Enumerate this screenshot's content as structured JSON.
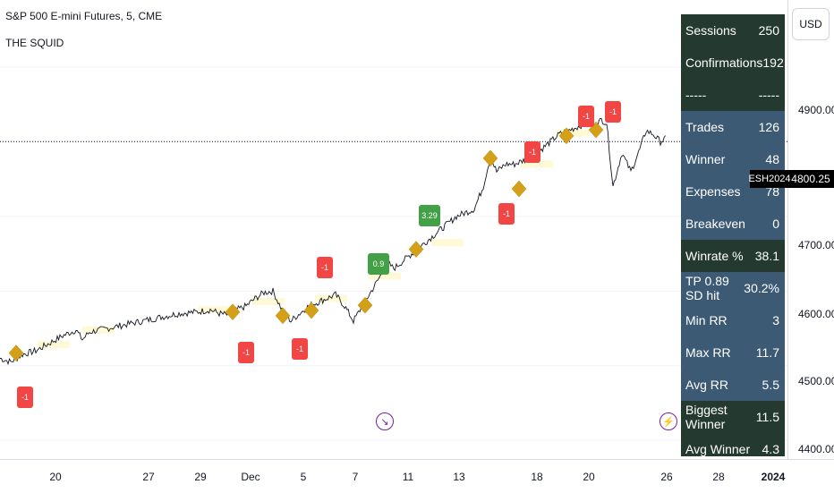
{
  "header": {
    "title": "S&P 500 E-mini Futures, 5, CME",
    "indicator": "THE SQUID"
  },
  "axis": {
    "currency": "USD",
    "y_labels": [
      "4900.00",
      "4800.00",
      "4700.00",
      "4600.00",
      "4500.00",
      "4400.00"
    ],
    "last_price": "4800.25",
    "symbol": "ESH2024"
  },
  "x_labels": [
    "20",
    "27",
    "29",
    "Dec",
    "5",
    "7",
    "11",
    "13",
    "18",
    "20",
    "26",
    "28",
    "2024"
  ],
  "stats": [
    {
      "label": "Sessions",
      "value": "250",
      "bg": "#243a30"
    },
    {
      "label": "Confirmations",
      "value": "192",
      "bg": "#243a30"
    },
    {
      "label": "-----",
      "value": "-----",
      "bg": "#243a30"
    },
    {
      "label": "Trades",
      "value": "126",
      "bg": "#3d5a75"
    },
    {
      "label": "Winner",
      "value": "48",
      "bg": "#3d5a75"
    },
    {
      "label": "Expenses",
      "value": "78",
      "bg": "#3d5a75"
    },
    {
      "label": "Breakeven",
      "value": "0",
      "bg": "#3d5a75"
    },
    {
      "label": "Winrate %",
      "value": "38.1",
      "bg": "#243a30"
    },
    {
      "label": "TP 0.89 SD hit",
      "value": "30.2%",
      "bg": "#3d5a75"
    },
    {
      "label": "Min RR",
      "value": "3",
      "bg": "#3d5a75"
    },
    {
      "label": "Max RR",
      "value": "11.7",
      "bg": "#3d5a75"
    },
    {
      "label": "Avg RR",
      "value": "5.5",
      "bg": "#3d5a75"
    },
    {
      "label": "Biggest Winner",
      "value": "11.5",
      "bg": "#243a30"
    },
    {
      "label": "Avg Winner",
      "value": "4.3",
      "bg": "#243a30"
    }
  ],
  "chart_data": {
    "type": "line",
    "ylim": [
      4375,
      4990
    ],
    "x_range": [
      0,
      760
    ],
    "series": [
      {
        "values": [
          [
            0,
            4510
          ],
          [
            12,
            4505
          ],
          [
            25,
            4515
          ],
          [
            40,
            4520
          ],
          [
            55,
            4530
          ],
          [
            70,
            4540
          ],
          [
            85,
            4548
          ],
          [
            92,
            4535
          ],
          [
            100,
            4545
          ],
          [
            120,
            4550
          ],
          [
            140,
            4555
          ],
          [
            160,
            4560
          ],
          [
            180,
            4565
          ],
          [
            200,
            4570
          ],
          [
            220,
            4572
          ],
          [
            235,
            4575
          ],
          [
            245,
            4570
          ],
          [
            255,
            4568
          ],
          [
            265,
            4575
          ],
          [
            275,
            4580
          ],
          [
            285,
            4590
          ],
          [
            295,
            4598
          ],
          [
            305,
            4600
          ],
          [
            315,
            4575
          ],
          [
            325,
            4560
          ],
          [
            335,
            4570
          ],
          [
            345,
            4580
          ],
          [
            355,
            4585
          ],
          [
            365,
            4590
          ],
          [
            375,
            4595
          ],
          [
            385,
            4580
          ],
          [
            395,
            4560
          ],
          [
            405,
            4580
          ],
          [
            415,
            4600
          ],
          [
            425,
            4620
          ],
          [
            432,
            4640
          ],
          [
            440,
            4630
          ],
          [
            450,
            4640
          ],
          [
            460,
            4650
          ],
          [
            470,
            4660
          ],
          [
            480,
            4670
          ],
          [
            490,
            4680
          ],
          [
            500,
            4690
          ],
          [
            510,
            4700
          ],
          [
            520,
            4705
          ],
          [
            530,
            4710
          ],
          [
            540,
            4740
          ],
          [
            548,
            4780
          ],
          [
            555,
            4760
          ],
          [
            565,
            4770
          ],
          [
            575,
            4770
          ],
          [
            585,
            4775
          ],
          [
            595,
            4780
          ],
          [
            605,
            4790
          ],
          [
            615,
            4800
          ],
          [
            625,
            4810
          ],
          [
            635,
            4815
          ],
          [
            645,
            4820
          ],
          [
            655,
            4825
          ],
          [
            665,
            4820
          ],
          [
            672,
            4830
          ],
          [
            678,
            4825
          ],
          [
            685,
            4740
          ],
          [
            695,
            4785
          ],
          [
            705,
            4760
          ],
          [
            715,
            4790
          ],
          [
            722,
            4815
          ],
          [
            730,
            4810
          ],
          [
            738,
            4800
          ],
          [
            745,
            4805
          ]
        ]
      }
    ],
    "diamonds": [
      [
        18,
        4517
      ],
      [
        260,
        4572
      ],
      [
        316,
        4567
      ],
      [
        348,
        4574
      ],
      [
        408,
        4581
      ],
      [
        465,
        4656
      ],
      [
        548,
        4778
      ],
      [
        580,
        4737
      ],
      [
        633,
        4808
      ],
      [
        666,
        4816
      ]
    ],
    "trade_labels": [
      {
        "text": "-1",
        "x": 28,
        "y": 4458,
        "kind": "loss"
      },
      {
        "text": "-1",
        "x": 275,
        "y": 4518,
        "kind": "loss"
      },
      {
        "text": "-1",
        "x": 335,
        "y": 4522,
        "kind": "loss"
      },
      {
        "text": "-1",
        "x": 363,
        "y": 4631,
        "kind": "loss"
      },
      {
        "text": "0.9",
        "x": 423,
        "y": 4636,
        "kind": "win"
      },
      {
        "text": "3.29",
        "x": 480,
        "y": 4701,
        "kind": "win"
      },
      {
        "text": "-1",
        "x": 566,
        "y": 4703,
        "kind": "loss"
      },
      {
        "text": "-1",
        "x": 595,
        "y": 4786,
        "kind": "loss"
      },
      {
        "text": "-1",
        "x": 655,
        "y": 4834,
        "kind": "loss"
      },
      {
        "text": "-1",
        "x": 685,
        "y": 4840,
        "kind": "loss"
      }
    ],
    "events": [
      {
        "x": 430,
        "y": 4425,
        "icon": "arrow"
      },
      {
        "x": 747,
        "y": 4425,
        "icon": "bolt"
      }
    ]
  }
}
